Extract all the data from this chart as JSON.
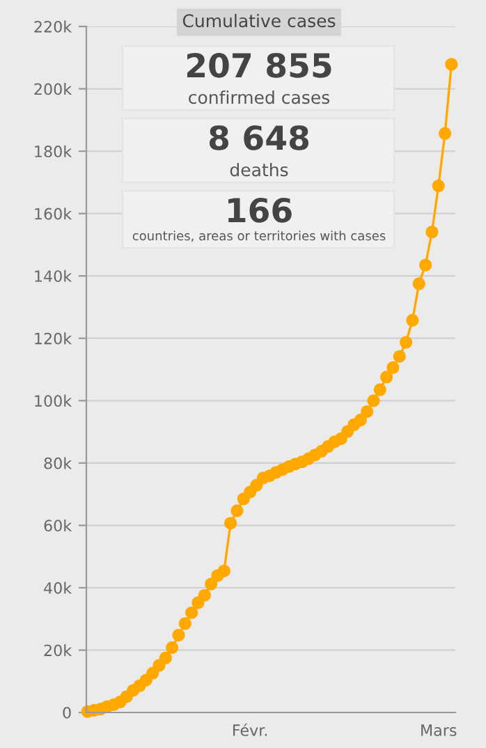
{
  "chart_data": {
    "type": "line",
    "title": "Cumulative cases",
    "annotations": [
      "207 855",
      "confirmed cases",
      "8 648",
      "deaths",
      "166",
      "countries, areas or territories with cases"
    ],
    "categories": [
      null,
      null,
      null,
      null,
      null,
      null,
      null,
      null,
      null,
      null,
      null,
      null,
      null,
      null,
      null,
      null,
      null,
      null,
      null,
      null,
      null,
      null,
      null,
      null,
      null,
      "Févr.",
      null,
      null,
      null,
      null,
      null,
      null,
      null,
      null,
      null,
      null,
      null,
      null,
      null,
      null,
      null,
      null,
      null,
      null,
      null,
      null,
      null,
      null,
      null,
      null,
      null,
      null,
      null,
      null,
      "Mars",
      null,
      null
    ],
    "series": [
      {
        "color": "#ffa800",
        "values": [
          300,
          700,
          1100,
          1900,
          2500,
          3400,
          5100,
          7100,
          8600,
          10400,
          12600,
          15100,
          17500,
          20800,
          24800,
          28500,
          32000,
          35200,
          37600,
          41200,
          43900,
          45400,
          60700,
          64700,
          68500,
          70700,
          72900,
          75200,
          75900,
          77000,
          77900,
          78900,
          79700,
          80400,
          81400,
          82600,
          83800,
          85300,
          86800,
          87800,
          90100,
          92300,
          93800,
          96500,
          100000,
          103500,
          107600,
          110600,
          114200,
          118700,
          125800,
          137500,
          143500,
          154100,
          168900,
          185700,
          207855
        ]
      }
    ],
    "ylim": [
      0,
      220000
    ],
    "yticks": [
      0,
      {
        "value": 20000,
        "label": "20k"
      },
      {
        "value": 40000,
        "label": "40k"
      },
      {
        "value": 60000,
        "label": "60k"
      },
      {
        "value": 80000,
        "label": "80k"
      },
      {
        "value": 100000,
        "label": "100k"
      },
      {
        "value": 120000,
        "label": "120k"
      },
      {
        "value": 140000,
        "label": "140k"
      },
      {
        "value": 160000,
        "label": "160k"
      },
      {
        "value": 180000,
        "label": "180k"
      },
      {
        "value": 200000,
        "label": "200k"
      },
      {
        "value": 220000,
        "label": "220k"
      }
    ],
    "grid": "y",
    "marker": "circle",
    "line_style": "solid",
    "legend": false
  }
}
